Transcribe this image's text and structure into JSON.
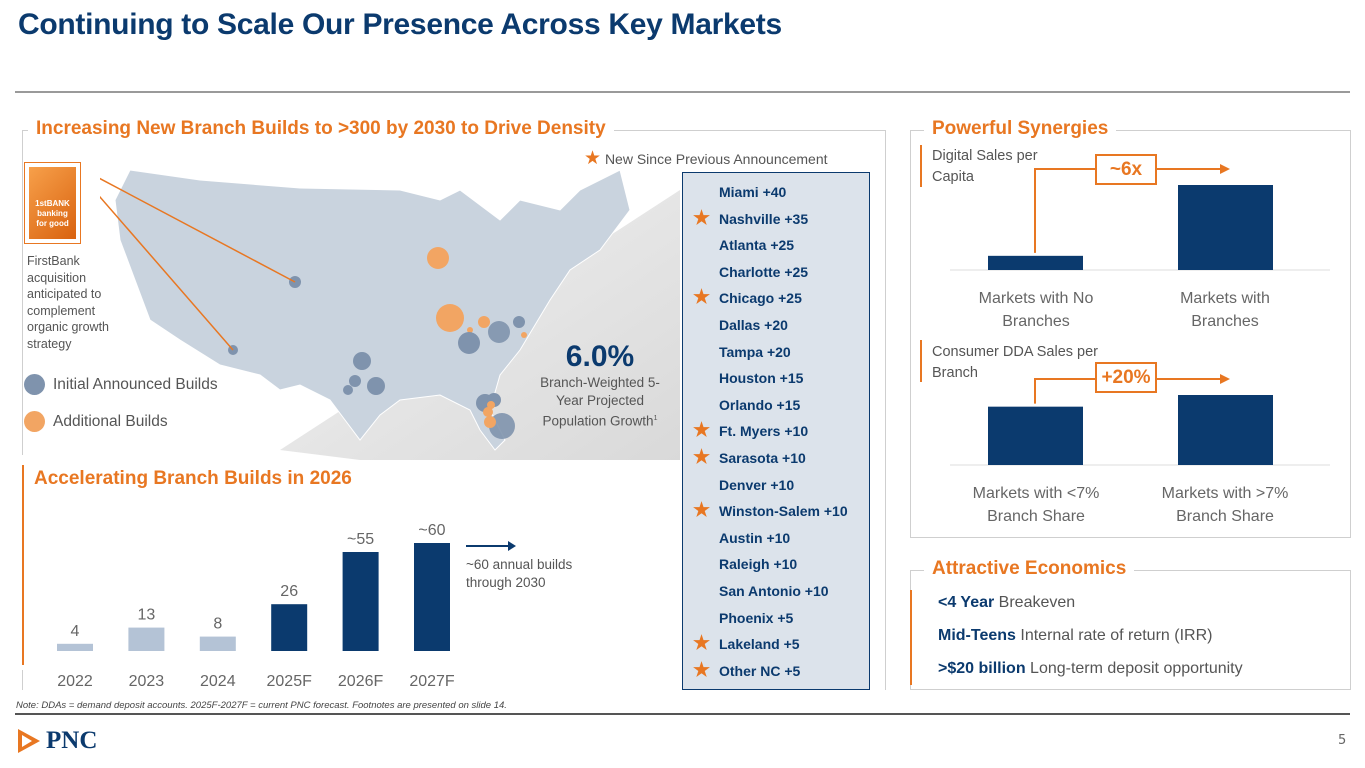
{
  "title": "Continuing to Scale Our Presence Across Key Markets",
  "left_panel": {
    "heading": "Increasing New Branch Builds to >300 by 2030 to Drive Density",
    "star_legend": "New Since Previous Announcement",
    "firstbank_logo_text": "1stBANK banking for good",
    "firstbank_note": "FirstBank acquisition anticipated to complement organic growth strategy",
    "legend": [
      {
        "label": "Initial Announced Builds",
        "color": "#7f93ad"
      },
      {
        "label": "Additional Builds",
        "color": "#f2a563"
      }
    ],
    "growth_value": "6.0%",
    "growth_label": "Branch-Weighted 5-Year Projected Population Growth",
    "growth_footnote": "1",
    "markets": [
      {
        "label": "Miami +40",
        "new": false
      },
      {
        "label": "Nashville +35",
        "new": true
      },
      {
        "label": "Atlanta +25",
        "new": false
      },
      {
        "label": "Charlotte +25",
        "new": false
      },
      {
        "label": "Chicago +25",
        "new": true
      },
      {
        "label": "Dallas +20",
        "new": false
      },
      {
        "label": "Tampa +20",
        "new": false
      },
      {
        "label": "Houston +15",
        "new": false
      },
      {
        "label": "Orlando +15",
        "new": false
      },
      {
        "label": "Ft. Myers +10",
        "new": true
      },
      {
        "label": "Sarasota +10",
        "new": true
      },
      {
        "label": "Denver +10",
        "new": false
      },
      {
        "label": "Winston-Salem +10",
        "new": true
      },
      {
        "label": "Austin +10",
        "new": false
      },
      {
        "label": "Raleigh +10",
        "new": false
      },
      {
        "label": "San Antonio +10",
        "new": false
      },
      {
        "label": "Phoenix +5",
        "new": false
      },
      {
        "label": "Lakeland +5",
        "new": true
      },
      {
        "label": "Other NC +5",
        "new": true
      }
    ]
  },
  "chart_data": {
    "type": "bar",
    "title": "Accelerating Branch Builds in 2026",
    "categories": [
      "2022",
      "2023",
      "2024",
      "2025F",
      "2026F",
      "2027F"
    ],
    "values": [
      4,
      13,
      8,
      26,
      55,
      60
    ],
    "data_labels": [
      "4",
      "13",
      "8",
      "26",
      "~55",
      "~60"
    ],
    "colors": [
      "#b4c3d6",
      "#b4c3d6",
      "#b4c3d6",
      "#0b3a6e",
      "#0b3a6e",
      "#0b3a6e"
    ],
    "annotation": "~60 annual builds through 2030",
    "ylim": [
      0,
      60
    ]
  },
  "synergies": {
    "heading": "Powerful Synergies",
    "chart1": {
      "label": "Digital Sales per Capita",
      "multiplier": "~6x",
      "categories": [
        "Markets with No Branches",
        "Markets with Branches"
      ],
      "values": [
        1,
        6
      ]
    },
    "chart2": {
      "label": "Consumer DDA Sales per Branch",
      "multiplier": "+20%",
      "categories": [
        "Markets with <7% Branch Share",
        "Markets with >7% Branch Share"
      ],
      "values": [
        1,
        1.2
      ]
    }
  },
  "economics": {
    "heading": "Attractive Economics",
    "items": [
      {
        "bold": "<4 Year",
        "text": " Breakeven"
      },
      {
        "bold": "Mid-Teens",
        "text": " Internal rate of return (IRR)"
      },
      {
        "bold": ">$20 billion",
        "text": " Long-term deposit opportunity"
      }
    ]
  },
  "footer": {
    "note": "Note: DDAs = demand deposit accounts. 2025F-2027F = current PNC forecast. Footnotes are presented on slide 14.",
    "logo": "PNC",
    "page": "5"
  },
  "colors": {
    "navy": "#0b3a6e",
    "orange": "#e87722"
  }
}
